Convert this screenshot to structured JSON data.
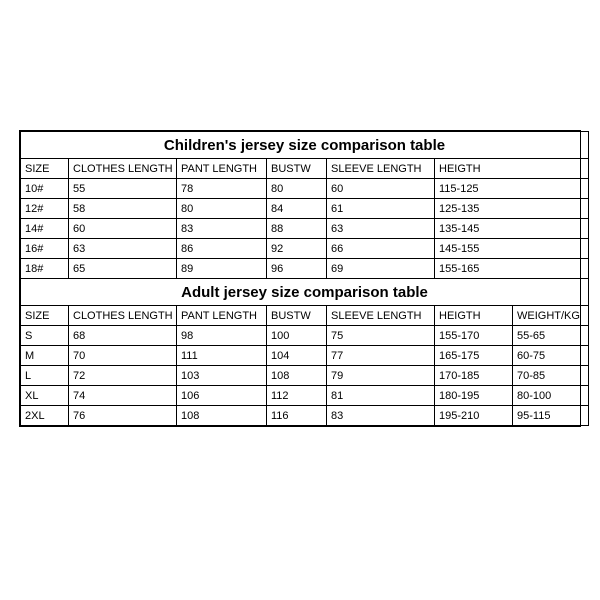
{
  "children_table": {
    "title": "Children's jersey size comparison table",
    "columns": [
      "SIZE",
      "CLOTHES LENGTH",
      "PANT LENGTH",
      "BUSTW",
      "SLEEVE LENGTH",
      "HEIGTH"
    ],
    "rows": [
      [
        "10#",
        "55",
        "78",
        "80",
        "60",
        "115-125"
      ],
      [
        "12#",
        "58",
        "80",
        "84",
        "61",
        "125-135"
      ],
      [
        "14#",
        "60",
        "83",
        "88",
        "63",
        "135-145"
      ],
      [
        "16#",
        "63",
        "86",
        "92",
        "66",
        "145-155"
      ],
      [
        "18#",
        "65",
        "89",
        "96",
        "69",
        "155-165"
      ]
    ]
  },
  "adult_table": {
    "title": "Adult jersey size comparison table",
    "columns": [
      "SIZE",
      "CLOTHES LENGTH",
      "PANT LENGTH",
      "BUSTW",
      "SLEEVE LENGTH",
      "HEIGTH",
      "WEIGHT/KG"
    ],
    "rows": [
      [
        "S",
        "68",
        "98",
        "100",
        "75",
        "155-170",
        "55-65"
      ],
      [
        "M",
        "70",
        "111",
        "104",
        "77",
        "165-175",
        "60-75"
      ],
      [
        "L",
        "72",
        "103",
        "108",
        "79",
        "170-185",
        "70-85"
      ],
      [
        "XL",
        "74",
        "106",
        "112",
        "81",
        "180-195",
        "80-100"
      ],
      [
        "2XL",
        "76",
        "108",
        "116",
        "83",
        "195-210",
        "95-115"
      ]
    ]
  },
  "style": {
    "border_color": "#000000",
    "background_color": "#ffffff",
    "font_family": "Arial",
    "title_fontsize": 15,
    "cell_fontsize": 11
  }
}
